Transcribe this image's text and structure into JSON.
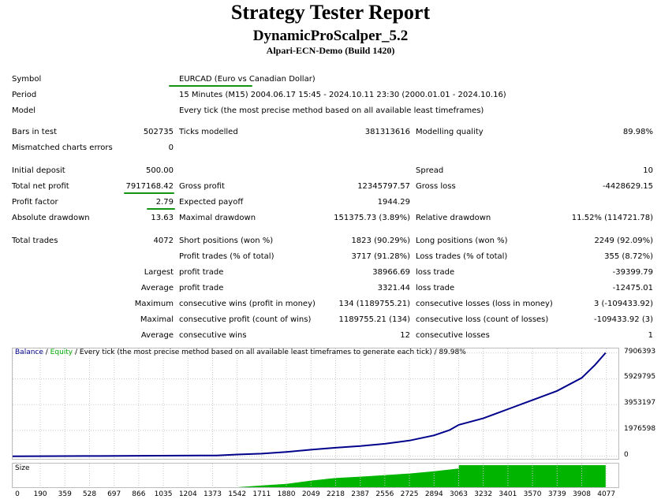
{
  "report": {
    "title": "Strategy Tester Report",
    "ea_name": "DynamicProScalper_5.2",
    "server": "Alpari-ECN-Demo (Build 1420)"
  },
  "info": {
    "symbol_label": "Symbol",
    "symbol_value": "EURCAD (Euro vs Canadian Dollar)",
    "period_label": "Period",
    "period_value": "15 Minutes (M15) 2004.06.17 15:45 - 2024.10.11 23:30 (2000.01.01 - 2024.10.16)",
    "model_label": "Model",
    "model_value": "Every tick (the most precise method based on all available least timeframes)"
  },
  "stats": {
    "bars_label": "Bars in test",
    "bars_value": "502735",
    "ticks_label": "Ticks modelled",
    "ticks_value": "381313616",
    "quality_label": "Modelling quality",
    "quality_value": "89.98%",
    "mismatch_label": "Mismatched charts errors",
    "mismatch_value": "0",
    "deposit_label": "Initial deposit",
    "deposit_value": "500.00",
    "spread_label": "Spread",
    "spread_value": "10",
    "netprofit_label": "Total net profit",
    "netprofit_value": "7917168.42",
    "grossprofit_label": "Gross profit",
    "grossprofit_value": "12345797.57",
    "grossloss_label": "Gross loss",
    "grossloss_value": "-4428629.15",
    "pf_label": "Profit factor",
    "pf_value": "2.79",
    "payoff_label": "Expected payoff",
    "payoff_value": "1944.29",
    "absdd_label": "Absolute drawdown",
    "absdd_value": "13.63",
    "maxdd_label": "Maximal drawdown",
    "maxdd_value": "151375.73 (3.89%)",
    "reldd_label": "Relative drawdown",
    "reldd_value": "11.52% (114721.78)",
    "trades_label": "Total trades",
    "trades_value": "4072",
    "short_label": "Short positions (won %)",
    "short_value": "1823 (90.29%)",
    "long_label": "Long positions (won %)",
    "long_value": "2249 (92.09%)",
    "profittrades_label": "Profit trades (% of total)",
    "profittrades_value": "3717 (91.28%)",
    "losstrades_label": "Loss trades (% of total)",
    "losstrades_value": "355 (8.72%)",
    "largest_label": "Largest",
    "largest_profit_label": "profit trade",
    "largest_profit_value": "38966.69",
    "largest_loss_label": "loss trade",
    "largest_loss_value": "-39399.79",
    "average_label": "Average",
    "average_profit_label": "profit trade",
    "average_profit_value": "3321.44",
    "average_loss_label": "loss trade",
    "average_loss_value": "-12475.01",
    "maximum_label": "Maximum",
    "max_wins_label": "consecutive wins (profit in money)",
    "max_wins_value": "134 (1189755.21)",
    "max_losses_label": "consecutive losses (loss in money)",
    "max_losses_value": "3 (-109433.92)",
    "maximal_label": "Maximal",
    "maximal_profit_label": "consecutive profit (count of wins)",
    "maximal_profit_value": "1189755.21 (134)",
    "maximal_loss_label": "consecutive loss (count of losses)",
    "maximal_loss_value": "-109433.92 (3)",
    "avg_consec_label": "Average",
    "avg_wins_label": "consecutive wins",
    "avg_wins_value": "12",
    "avg_losses_label": "consecutive losses",
    "avg_losses_value": "1"
  },
  "chart_data": {
    "type": "line",
    "legend_balance": "Balance",
    "legend_sep": " / ",
    "legend_equity": "Equity",
    "legend_rest": " / Every tick (the most precise method based on all available least timeframes to generate each tick) / 89.98%",
    "size_label": "Size",
    "colors": {
      "balance": "#00008b",
      "equity": "#00aa00",
      "size": "#00b400",
      "grid": "#c8c8c8"
    },
    "xlim": [
      0,
      4160
    ],
    "ylim": [
      -200000,
      8250000
    ],
    "y_ticks": [
      "7906393",
      "5929795",
      "3953197",
      "1976598",
      "0"
    ],
    "y_tick_values": [
      7906393,
      5929795,
      3953197,
      1976598,
      0
    ],
    "x_ticks": [
      "0",
      "190",
      "359",
      "528",
      "697",
      "866",
      "1035",
      "1204",
      "1373",
      "1542",
      "1711",
      "1880",
      "2049",
      "2218",
      "2387",
      "2556",
      "2725",
      "2894",
      "3063",
      "3232",
      "3401",
      "3570",
      "3739",
      "3908",
      "4077"
    ],
    "x_tick_values": [
      0,
      190,
      359,
      528,
      697,
      866,
      1035,
      1204,
      1373,
      1542,
      1711,
      1880,
      2049,
      2218,
      2387,
      2556,
      2725,
      2894,
      3063,
      3232,
      3401,
      3570,
      3739,
      3908,
      4077
    ],
    "series": [
      {
        "name": "Balance",
        "x": [
          0,
          500,
          1000,
          1400,
          1542,
          1711,
          1880,
          2049,
          2218,
          2387,
          2556,
          2725,
          2894,
          3000,
          3063,
          3232,
          3401,
          3570,
          3739,
          3908,
          4000,
          4072
        ],
        "values": [
          500,
          20000,
          40000,
          60000,
          130000,
          200000,
          330000,
          500000,
          650000,
          780000,
          950000,
          1200000,
          1600000,
          2000000,
          2400000,
          2900000,
          3600000,
          4300000,
          5000000,
          6000000,
          7000000,
          7917168
        ]
      },
      {
        "name": "Size",
        "x": [
          0,
          1542,
          1711,
          1880,
          2049,
          2218,
          2387,
          2556,
          2725,
          2894,
          3063,
          3064,
          4072
        ],
        "values": [
          0,
          0,
          0.08,
          0.15,
          0.3,
          0.42,
          0.48,
          0.55,
          0.62,
          0.72,
          0.85,
          1.0,
          1.0
        ]
      }
    ]
  }
}
